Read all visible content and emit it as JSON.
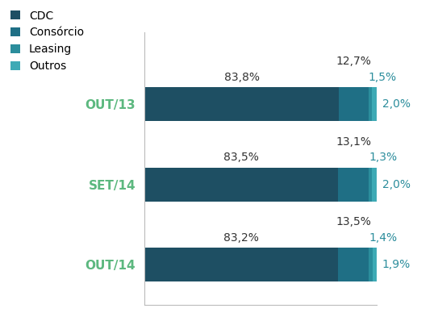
{
  "chart_data": {
    "type": "bar",
    "orientation": "horizontal",
    "stacked": true,
    "data_labels": true,
    "tick_labels": "y",
    "legend": "upper left",
    "categories": [
      "OUT/13",
      "SET/14",
      "OUT/14"
    ],
    "xlim": [
      0,
      100
    ],
    "series": [
      {
        "name": "CDC",
        "color": "#1e4f63",
        "values": [
          83.8,
          83.5,
          83.2
        ],
        "value_labels": [
          "83,8%",
          "83,5%",
          "83,2%"
        ]
      },
      {
        "name": "Consórcio",
        "color": "#1f6f85",
        "values": [
          12.7,
          13.1,
          13.5
        ],
        "value_labels": [
          "12,7%",
          "13,1%",
          "13,5%"
        ]
      },
      {
        "name": "Leasing",
        "color": "#2b8d9c",
        "values": [
          1.5,
          1.3,
          1.4
        ],
        "value_labels": [
          "1,5%",
          "1,3%",
          "1,4%"
        ]
      },
      {
        "name": "Outros",
        "color": "#3eaab5",
        "values": [
          2.0,
          2.0,
          1.9
        ],
        "value_labels": [
          "2,0%",
          "2,0%",
          "1,9%"
        ]
      }
    ]
  }
}
